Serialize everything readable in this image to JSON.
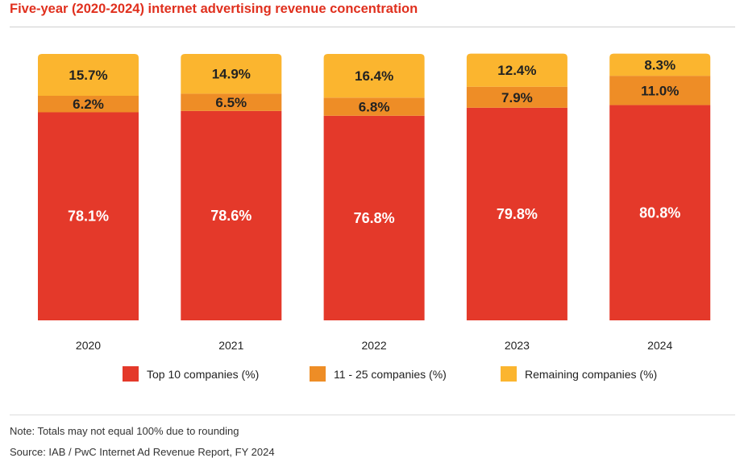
{
  "chart_data": {
    "type": "bar",
    "stacked": true,
    "title": "Five-year (2020-2024) internet advertising revenue concentration",
    "categories": [
      "2020",
      "2021",
      "2022",
      "2023",
      "2024"
    ],
    "series": [
      {
        "name": "Top 10 companies (%)",
        "color": "#e4392a",
        "label_color": "#ffffff",
        "values": [
          78.1,
          78.6,
          76.8,
          79.8,
          80.8
        ],
        "labels": [
          "78.1%",
          "78.6%",
          "76.8%",
          "79.8%",
          "80.8%"
        ]
      },
      {
        "name": "11 - 25 companies (%)",
        "color": "#ee8d26",
        "label_color": "#222222",
        "values": [
          6.2,
          6.5,
          6.8,
          7.9,
          11.0
        ],
        "labels": [
          "6.2%",
          "6.5%",
          "6.8%",
          "7.9%",
          "11.0%"
        ]
      },
      {
        "name": "Remaining companies (%)",
        "color": "#fbb52f",
        "label_color": "#222222",
        "values": [
          15.7,
          14.9,
          16.4,
          12.4,
          8.3
        ],
        "labels": [
          "15.7%",
          "14.9%",
          "16.4%",
          "12.4%",
          "8.3%"
        ]
      }
    ],
    "xlabel": "",
    "ylabel": "",
    "ylim": [
      0,
      100
    ],
    "grid": false,
    "legend_position": "bottom"
  },
  "footer": {
    "note": "Note: Totals may not equal 100% due to rounding",
    "source": "Source: IAB / PwC Internet Ad Revenue Report, FY 2024"
  }
}
